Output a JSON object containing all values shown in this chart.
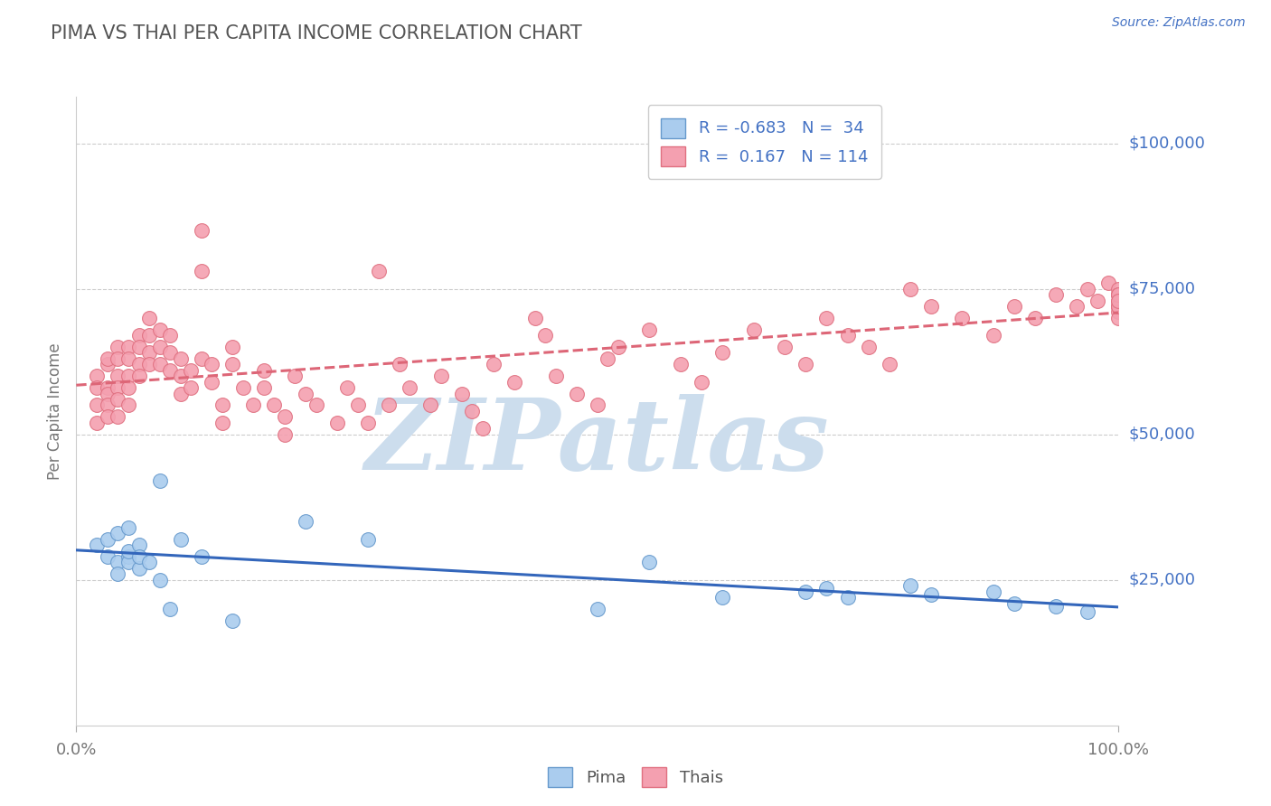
{
  "title": "PIMA VS THAI PER CAPITA INCOME CORRELATION CHART",
  "source_text": "Source: ZipAtlas.com",
  "ylabel": "Per Capita Income",
  "xlim": [
    0.0,
    1.0
  ],
  "ylim": [
    0,
    108000
  ],
  "background_color": "#ffffff",
  "grid_color": "#cccccc",
  "title_color": "#555555",
  "watermark_text": "ZIPatlas",
  "watermark_color": "#ccdded",
  "pima_color": "#aaccee",
  "pima_edge_color": "#6699cc",
  "thai_color": "#f4a0b0",
  "thai_edge_color": "#e07080",
  "pima_R": -0.683,
  "pima_N": 34,
  "thai_R": 0.167,
  "thai_N": 114,
  "pima_line_color": "#3366bb",
  "thai_line_color": "#dd6677",
  "blue_text_color": "#4472c4",
  "pima_x": [
    0.02,
    0.03,
    0.03,
    0.04,
    0.04,
    0.04,
    0.05,
    0.05,
    0.05,
    0.05,
    0.06,
    0.06,
    0.06,
    0.07,
    0.08,
    0.08,
    0.09,
    0.1,
    0.12,
    0.15,
    0.22,
    0.28,
    0.5,
    0.55,
    0.62,
    0.7,
    0.72,
    0.74,
    0.8,
    0.82,
    0.88,
    0.9,
    0.94,
    0.97
  ],
  "pima_y": [
    31000,
    32000,
    29000,
    28000,
    33000,
    26000,
    29000,
    28000,
    34000,
    30000,
    27000,
    31000,
    29000,
    28000,
    42000,
    25000,
    20000,
    32000,
    29000,
    18000,
    35000,
    32000,
    20000,
    28000,
    22000,
    23000,
    23500,
    22000,
    24000,
    22500,
    23000,
    21000,
    20500,
    19500
  ],
  "thai_x": [
    0.02,
    0.02,
    0.02,
    0.02,
    0.03,
    0.03,
    0.03,
    0.03,
    0.03,
    0.03,
    0.04,
    0.04,
    0.04,
    0.04,
    0.04,
    0.04,
    0.05,
    0.05,
    0.05,
    0.05,
    0.05,
    0.06,
    0.06,
    0.06,
    0.06,
    0.07,
    0.07,
    0.07,
    0.07,
    0.08,
    0.08,
    0.08,
    0.09,
    0.09,
    0.09,
    0.1,
    0.1,
    0.1,
    0.11,
    0.11,
    0.12,
    0.12,
    0.12,
    0.13,
    0.13,
    0.14,
    0.14,
    0.15,
    0.15,
    0.16,
    0.17,
    0.18,
    0.18,
    0.19,
    0.2,
    0.2,
    0.21,
    0.22,
    0.23,
    0.25,
    0.26,
    0.27,
    0.28,
    0.29,
    0.3,
    0.31,
    0.32,
    0.34,
    0.35,
    0.37,
    0.38,
    0.39,
    0.4,
    0.42,
    0.44,
    0.45,
    0.46,
    0.48,
    0.5,
    0.51,
    0.52,
    0.55,
    0.58,
    0.6,
    0.62,
    0.65,
    0.68,
    0.7,
    0.72,
    0.74,
    0.76,
    0.78,
    0.8,
    0.82,
    0.85,
    0.88,
    0.9,
    0.92,
    0.94,
    0.96,
    0.97,
    0.98,
    0.99,
    1.0,
    1.0,
    1.0,
    1.0,
    1.0,
    1.0,
    1.0,
    1.0,
    1.0,
    1.0,
    1.0
  ],
  "thai_y": [
    55000,
    60000,
    58000,
    52000,
    62000,
    58000,
    63000,
    57000,
    55000,
    53000,
    65000,
    63000,
    60000,
    58000,
    56000,
    53000,
    65000,
    63000,
    60000,
    58000,
    55000,
    67000,
    65000,
    62000,
    60000,
    70000,
    67000,
    64000,
    62000,
    68000,
    65000,
    62000,
    67000,
    64000,
    61000,
    63000,
    60000,
    57000,
    61000,
    58000,
    63000,
    85000,
    78000,
    62000,
    59000,
    55000,
    52000,
    65000,
    62000,
    58000,
    55000,
    61000,
    58000,
    55000,
    53000,
    50000,
    60000,
    57000,
    55000,
    52000,
    58000,
    55000,
    52000,
    78000,
    55000,
    62000,
    58000,
    55000,
    60000,
    57000,
    54000,
    51000,
    62000,
    59000,
    70000,
    67000,
    60000,
    57000,
    55000,
    63000,
    65000,
    68000,
    62000,
    59000,
    64000,
    68000,
    65000,
    62000,
    70000,
    67000,
    65000,
    62000,
    75000,
    72000,
    70000,
    67000,
    72000,
    70000,
    74000,
    72000,
    75000,
    73000,
    76000,
    74000,
    72000,
    75000,
    73000,
    74000,
    72000,
    71000,
    70000,
    72000,
    74000,
    73000
  ]
}
